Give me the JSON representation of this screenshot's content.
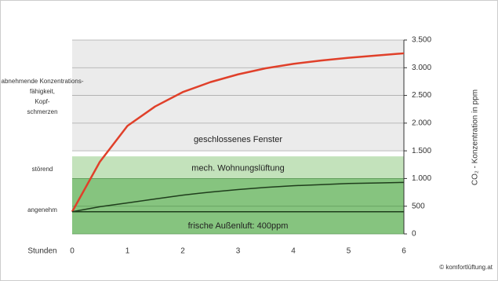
{
  "chart_data": {
    "type": "line",
    "x_label": "Stunden",
    "y_label": "CO₂ - Konzentration in ppm",
    "credit": "© komfortlüftung.at",
    "x": [
      0,
      0.5,
      1,
      1.5,
      2,
      2.5,
      3,
      3.5,
      4,
      4.5,
      5,
      5.5,
      6
    ],
    "xlim": [
      0,
      6
    ],
    "xticks": [
      0,
      1,
      2,
      3,
      4,
      5,
      6
    ],
    "ylim": [
      0,
      3500
    ],
    "yticks": [
      0,
      500,
      {
        "value": 1000,
        "label": "1.000"
      },
      {
        "value": 1500,
        "label": "1.500"
      },
      {
        "value": 2000,
        "label": "2.000"
      },
      {
        "value": 2500,
        "label": "2.500"
      },
      {
        "value": 3000,
        "label": "3.000"
      },
      {
        "value": 3500,
        "label": "3.500"
      }
    ],
    "grid": true,
    "zones": [
      {
        "from": 1500,
        "to": 3500,
        "color": "#ebebeb",
        "label": "geschlossenes Fenster"
      },
      {
        "from": 1000,
        "to": 1400,
        "color": "#c3e2bb",
        "label": "mech. Wohnungslüftung"
      },
      {
        "from": 0,
        "to": 1000,
        "color": "#86c47f",
        "label": "frische Außenluft: 400ppm"
      }
    ],
    "side_labels": [
      "abnehmende Konzentrations-fähigkeit, Kopf-schmerzen",
      "störend",
      "angenehm"
    ],
    "series": [
      {
        "color": "#e0402a",
        "values": [
          400,
          1300,
          1950,
          2300,
          2560,
          2740,
          2880,
          2990,
          3070,
          3130,
          3180,
          3220,
          3260
        ]
      },
      {
        "color": "#1f3d1c",
        "values": [
          400,
          490,
          560,
          630,
          700,
          755,
          800,
          840,
          870,
          890,
          910,
          920,
          930
        ]
      },
      {
        "color": "#1f3d1c",
        "values": [
          400,
          400,
          400,
          400,
          400,
          400,
          400,
          400,
          400,
          400,
          400,
          400,
          400
        ]
      }
    ]
  }
}
